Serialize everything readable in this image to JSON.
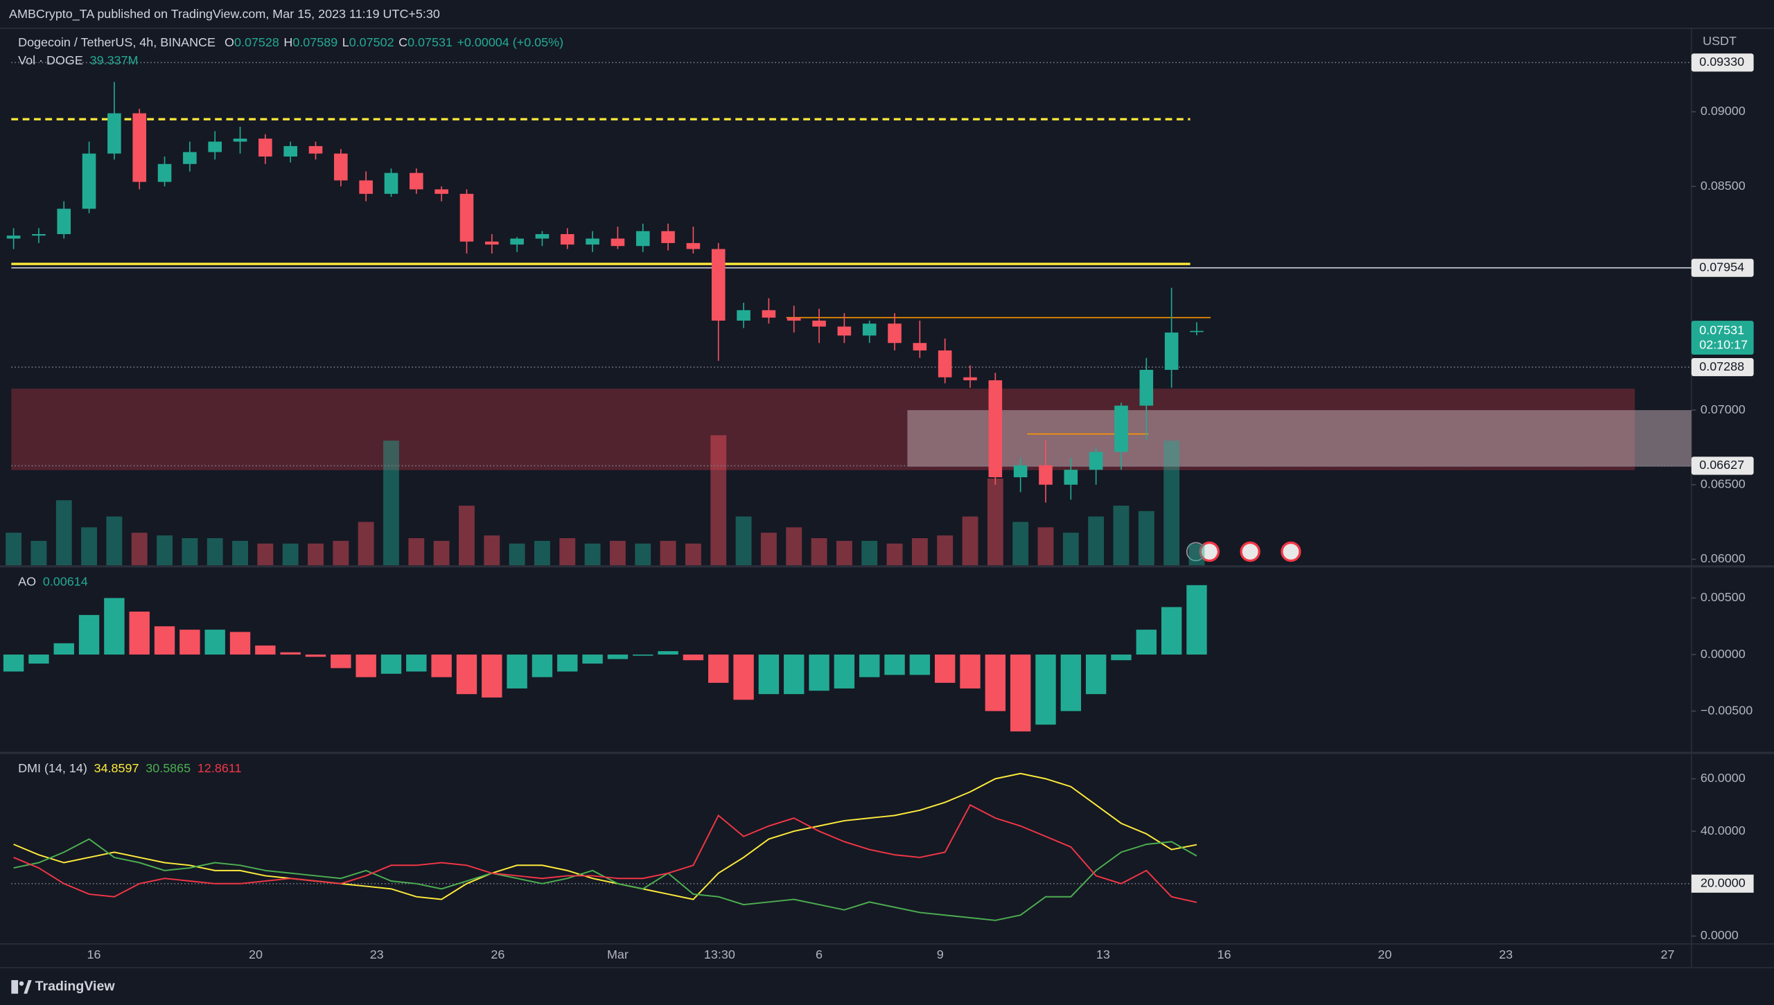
{
  "header": {
    "text": "AMBCrypto_TA published on TradingView.com, Mar 15, 2023 11:19 UTC+5:30"
  },
  "footer": {
    "brand": "TradingView"
  },
  "x_axis": {
    "labels": [
      "16",
      "20",
      "23",
      "26",
      "Mar",
      "13:30",
      "6",
      "9",
      "13",
      "16",
      "20",
      "23",
      "27"
    ]
  },
  "chart_data": [
    {
      "type": "candlestick",
      "title": "Dogecoin / TetherUS, 4h, BINANCE",
      "ohlc_labels": [
        "O",
        "H",
        "L",
        "C"
      ],
      "change": "+0.00004 (+0.05%)",
      "currency": "USDT",
      "countdown": "02:10:17",
      "open": [
        0.0815,
        0.0817,
        0.0818,
        0.0835,
        0.0872,
        0.0899,
        0.0853,
        0.0865,
        0.0873,
        0.088,
        0.0882,
        0.087,
        0.0877,
        0.0872,
        0.0854,
        0.0845,
        0.0859,
        0.0848,
        0.0845,
        0.0813,
        0.0811,
        0.0815,
        0.0818,
        0.0811,
        0.0815,
        0.081,
        0.082,
        0.0812,
        0.0808,
        0.076,
        0.0767,
        0.0762,
        0.076,
        0.0756,
        0.075,
        0.0758,
        0.0745,
        0.074,
        0.0722,
        0.072,
        0.0655,
        0.0663,
        0.065,
        0.066,
        0.0672,
        0.0703,
        0.0727,
        0.07528
      ],
      "high": [
        0.0822,
        0.0822,
        0.084,
        0.088,
        0.092,
        0.0902,
        0.087,
        0.088,
        0.0887,
        0.089,
        0.0885,
        0.088,
        0.088,
        0.0875,
        0.086,
        0.0862,
        0.0862,
        0.085,
        0.0848,
        0.0818,
        0.0816,
        0.082,
        0.0822,
        0.082,
        0.0823,
        0.0825,
        0.0825,
        0.0823,
        0.0812,
        0.0772,
        0.0775,
        0.077,
        0.0768,
        0.0765,
        0.076,
        0.0765,
        0.076,
        0.0748,
        0.073,
        0.0725,
        0.0668,
        0.068,
        0.0668,
        0.0675,
        0.0705,
        0.0735,
        0.0782,
        0.07589
      ],
      "low": [
        0.0808,
        0.0812,
        0.0815,
        0.0832,
        0.0868,
        0.0848,
        0.085,
        0.086,
        0.0868,
        0.0872,
        0.0865,
        0.0866,
        0.0868,
        0.085,
        0.084,
        0.0843,
        0.0845,
        0.084,
        0.0805,
        0.0805,
        0.0806,
        0.081,
        0.0808,
        0.0806,
        0.0808,
        0.0806,
        0.0807,
        0.0805,
        0.0733,
        0.0755,
        0.0758,
        0.0752,
        0.0745,
        0.0745,
        0.0745,
        0.074,
        0.0735,
        0.0718,
        0.0715,
        0.065,
        0.0645,
        0.0638,
        0.064,
        0.065,
        0.066,
        0.068,
        0.0715,
        0.07502
      ],
      "close": [
        0.0817,
        0.0818,
        0.0835,
        0.0872,
        0.0899,
        0.0853,
        0.0865,
        0.0873,
        0.088,
        0.0882,
        0.087,
        0.0877,
        0.0872,
        0.0854,
        0.0845,
        0.0859,
        0.0848,
        0.0845,
        0.0813,
        0.0811,
        0.0815,
        0.0818,
        0.0811,
        0.0815,
        0.081,
        0.082,
        0.0812,
        0.0808,
        0.076,
        0.0767,
        0.0762,
        0.076,
        0.0756,
        0.075,
        0.0758,
        0.0745,
        0.074,
        0.0722,
        0.072,
        0.0655,
        0.0663,
        0.065,
        0.066,
        0.0672,
        0.0703,
        0.0727,
        0.0752,
        0.07531
      ],
      "up_color": "#22ab94",
      "down_color": "#f7525f",
      "volume": {
        "name": "Vol · DOGE",
        "label": "39.337M",
        "values": [
          60,
          45,
          120,
          70,
          90,
          60,
          55,
          50,
          50,
          45,
          40,
          40,
          40,
          45,
          80,
          230,
          50,
          45,
          110,
          55,
          40,
          45,
          50,
          40,
          45,
          40,
          45,
          40,
          240,
          90,
          60,
          70,
          50,
          45,
          45,
          40,
          50,
          55,
          90,
          160,
          80,
          70,
          60,
          90,
          110,
          100,
          230,
          39.337
        ]
      },
      "ylim": [
        0.0596,
        0.0956
      ],
      "yticks": [
        {
          "value": 0.06,
          "label": "0.06000"
        },
        {
          "value": 0.065,
          "label": "0.06500"
        },
        {
          "value": 0.07,
          "label": "0.07000"
        },
        {
          "value": 0.085,
          "label": "0.08500"
        },
        {
          "value": 0.09,
          "label": "0.09000"
        }
      ],
      "levels": [
        {
          "value": 0.0933,
          "label": "0.09330"
        },
        0.07954,
        0.07288,
        0.06627
      ],
      "hlines": [
        {
          "value": 0.0798,
          "color": "#ffeb3b",
          "style": "solid"
        },
        {
          "value": 0.0895,
          "color": "#ffeb3b",
          "style": "dashed"
        },
        {
          "value": 0.0762,
          "color": "#ff9800",
          "style": "thin"
        },
        {
          "value": 0.0684,
          "color": "#ff9800",
          "style": "thin"
        }
      ],
      "zones": [
        {
          "from": 0.06598,
          "to": 0.07144,
          "color": "#7a2a36"
        },
        {
          "from": 0.06621,
          "to": 0.07,
          "color": "#b8a4ab"
        }
      ]
    },
    {
      "type": "bar",
      "title": "AO",
      "values": [
        -0.0015,
        -0.0008,
        0.001,
        0.0035,
        0.005,
        0.0038,
        0.0025,
        0.0022,
        0.0022,
        0.002,
        0.0008,
        0.0002,
        -0.0002,
        -0.0012,
        -0.002,
        -0.0017,
        -0.0015,
        -0.002,
        -0.0035,
        -0.0038,
        -0.003,
        -0.002,
        -0.0015,
        -0.0008,
        -0.0004,
        -0.0001,
        0.0003,
        -0.0005,
        -0.0025,
        -0.004,
        -0.0035,
        -0.0035,
        -0.0032,
        -0.003,
        -0.002,
        -0.0018,
        -0.0018,
        -0.0025,
        -0.003,
        -0.005,
        -0.0068,
        -0.0062,
        -0.005,
        -0.0035,
        -0.0005,
        0.0022,
        0.0042,
        0.00614
      ],
      "up_color": "#22ab94",
      "down_color": "#f7525f",
      "ylim": [
        -0.0086,
        0.0076
      ],
      "yticks": [
        {
          "value": -0.005,
          "label": "−0.00500"
        },
        {
          "value": 0,
          "label": "0.00000"
        },
        {
          "value": 0.005,
          "label": "0.00500"
        }
      ]
    },
    {
      "type": "line",
      "title": "DMI (14, 14)",
      "series": [
        {
          "color": "#ffeb3b",
          "values": [
            35,
            31,
            28,
            30,
            32,
            30,
            28,
            27,
            25,
            25,
            23,
            22,
            21,
            20,
            19,
            18,
            15,
            14,
            20,
            24,
            27,
            27,
            25,
            22,
            20,
            18,
            16,
            14,
            24,
            30,
            37,
            40,
            42,
            44,
            45,
            46,
            48,
            51,
            55,
            60,
            62,
            60,
            57,
            50,
            43,
            39,
            33,
            34.8597
          ]
        },
        {
          "color": "#4caf50",
          "values": [
            26,
            28,
            32,
            37,
            30,
            28,
            25,
            26,
            28,
            27,
            25,
            24,
            23,
            22,
            25,
            21,
            20,
            18,
            21,
            24,
            22,
            20,
            22,
            25,
            20,
            18,
            24,
            16,
            15,
            12,
            13,
            14,
            12,
            10,
            13,
            11,
            9,
            8,
            7,
            6,
            8,
            15,
            15,
            25,
            32,
            35,
            36,
            30.5865
          ]
        },
        {
          "color": "#f23645",
          "values": [
            30,
            26,
            20,
            16,
            15,
            20,
            22,
            21,
            20,
            20,
            21,
            22,
            21,
            20,
            23,
            27,
            27,
            28,
            27,
            24,
            23,
            22,
            23,
            23,
            22,
            22,
            24,
            27,
            46,
            38,
            42,
            45,
            40,
            36,
            33,
            31,
            30,
            32,
            50,
            45,
            42,
            38,
            34,
            23,
            20,
            25,
            15,
            12.8611
          ]
        }
      ],
      "ylim": [
        -3,
        69
      ],
      "yticks": [
        {
          "value": 0,
          "label": "0.0000"
        },
        {
          "value": 20,
          "label": "20.0000"
        },
        {
          "value": 40,
          "label": "40.0000"
        },
        {
          "value": 60,
          "label": "60.0000"
        }
      ],
      "reference": 20
    }
  ]
}
